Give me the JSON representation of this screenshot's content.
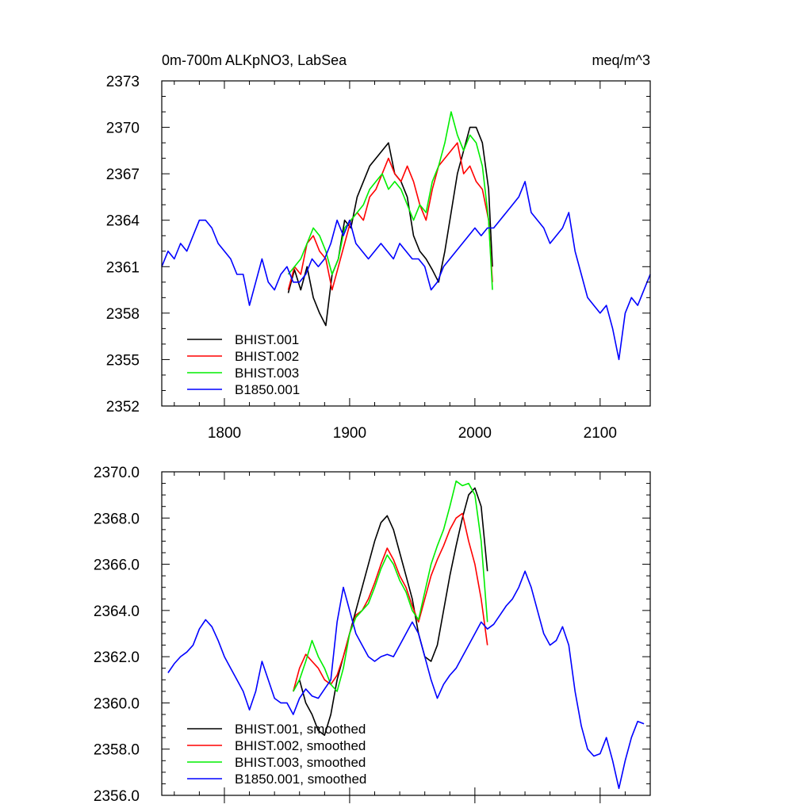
{
  "chart_data": [
    {
      "type": "line",
      "title_left": "0m-700m ALKpNO3, LabSea",
      "title_right": "meq/m^3",
      "xlim": [
        1750,
        2140
      ],
      "ylim": [
        2352,
        2373
      ],
      "xticks": [
        1800,
        1900,
        2000,
        2100
      ],
      "xtick_labels": [
        "1800",
        "1900",
        "2000",
        "2100"
      ],
      "yticks": [
        2352,
        2355,
        2358,
        2361,
        2364,
        2367,
        2370,
        2373
      ],
      "ytick_labels": [
        "2352",
        "2355",
        "2358",
        "2361",
        "2364",
        "2367",
        "2370",
        "2373"
      ],
      "legend_position": "bottom-left",
      "series": [
        {
          "name": "BHIST.001",
          "color": "#000000",
          "x": [
            1851,
            1856,
            1861,
            1866,
            1871,
            1876,
            1881,
            1886,
            1891,
            1896,
            1901,
            1906,
            1911,
            1916,
            1921,
            1926,
            1931,
            1936,
            1941,
            1946,
            1951,
            1956,
            1961,
            1966,
            1971,
            1976,
            1981,
            1986,
            1991,
            1996,
            2001,
            2006,
            2011,
            2014
          ],
          "y": [
            2359.3,
            2360.8,
            2359.5,
            2361.0,
            2359.0,
            2358.0,
            2357.2,
            2360.5,
            2361.5,
            2364.0,
            2363.5,
            2365.5,
            2366.5,
            2367.5,
            2368.0,
            2368.5,
            2369.0,
            2367.0,
            2366.5,
            2365.5,
            2363.0,
            2362.0,
            2361.5,
            2360.8,
            2360.0,
            2362.0,
            2364.5,
            2367.0,
            2368.5,
            2370.0,
            2370.0,
            2369.0,
            2366.0,
            2361.0
          ]
        },
        {
          "name": "BHIST.002",
          "color": "#ff0000",
          "x": [
            1851,
            1856,
            1861,
            1866,
            1871,
            1876,
            1881,
            1886,
            1891,
            1896,
            1901,
            1906,
            1911,
            1916,
            1921,
            1926,
            1931,
            1936,
            1941,
            1946,
            1951,
            1956,
            1961,
            1966,
            1971,
            1976,
            1981,
            1986,
            1991,
            1996,
            2001,
            2006,
            2011,
            2014
          ],
          "y": [
            2359.5,
            2361.0,
            2360.5,
            2362.5,
            2363.0,
            2362.0,
            2361.5,
            2359.5,
            2361.0,
            2362.5,
            2364.0,
            2364.5,
            2364.0,
            2365.5,
            2366.0,
            2367.0,
            2368.0,
            2367.0,
            2366.5,
            2367.5,
            2366.5,
            2365.0,
            2364.0,
            2366.0,
            2367.5,
            2368.0,
            2368.5,
            2369.0,
            2367.0,
            2367.5,
            2366.5,
            2366.0,
            2364.0,
            2360.0
          ]
        },
        {
          "name": "BHIST.003",
          "color": "#00ee00",
          "x": [
            1851,
            1856,
            1861,
            1866,
            1871,
            1876,
            1881,
            1886,
            1891,
            1896,
            1901,
            1906,
            1911,
            1916,
            1921,
            1926,
            1931,
            1936,
            1941,
            1946,
            1951,
            1956,
            1961,
            1966,
            1971,
            1976,
            1981,
            1986,
            1991,
            1996,
            2001,
            2006,
            2011,
            2014
          ],
          "y": [
            2360.5,
            2361.0,
            2361.5,
            2362.5,
            2363.5,
            2363.0,
            2362.0,
            2360.5,
            2361.5,
            2363.5,
            2364.0,
            2364.5,
            2365.0,
            2366.0,
            2366.5,
            2367.0,
            2366.0,
            2366.5,
            2366.0,
            2365.0,
            2364.0,
            2365.0,
            2364.5,
            2366.5,
            2367.5,
            2369.0,
            2371.0,
            2369.5,
            2368.5,
            2369.5,
            2369.0,
            2367.5,
            2364.0,
            2359.5
          ]
        },
        {
          "name": "B1850.001",
          "color": "#0000ff",
          "x": [
            1750,
            1755,
            1760,
            1765,
            1770,
            1775,
            1780,
            1785,
            1790,
            1795,
            1800,
            1805,
            1810,
            1815,
            1820,
            1825,
            1830,
            1835,
            1840,
            1845,
            1850,
            1855,
            1860,
            1865,
            1870,
            1875,
            1880,
            1885,
            1890,
            1895,
            1900,
            1905,
            1910,
            1915,
            1920,
            1925,
            1930,
            1935,
            1940,
            1945,
            1950,
            1955,
            1960,
            1965,
            1970,
            1975,
            1980,
            1985,
            1990,
            1995,
            2000,
            2005,
            2010,
            2015,
            2020,
            2025,
            2030,
            2035,
            2040,
            2045,
            2050,
            2055,
            2060,
            2065,
            2070,
            2075,
            2080,
            2085,
            2090,
            2095,
            2100,
            2105,
            2110,
            2115,
            2120,
            2125,
            2130,
            2135,
            2140
          ],
          "y": [
            2361.0,
            2362.0,
            2361.5,
            2362.5,
            2362.0,
            2363.0,
            2364.0,
            2364.0,
            2363.5,
            2362.5,
            2362.0,
            2361.5,
            2360.5,
            2360.5,
            2358.5,
            2360.0,
            2361.5,
            2360.0,
            2359.5,
            2360.5,
            2361.0,
            2360.0,
            2360.0,
            2360.5,
            2361.5,
            2361.0,
            2361.5,
            2362.5,
            2364.0,
            2363.0,
            2364.0,
            2362.5,
            2362.0,
            2361.5,
            2362.0,
            2362.5,
            2362.0,
            2361.5,
            2362.5,
            2362.0,
            2361.5,
            2361.5,
            2361.0,
            2359.5,
            2360.0,
            2361.0,
            2361.5,
            2362.0,
            2362.5,
            2363.0,
            2363.5,
            2363.0,
            2363.5,
            2363.5,
            2364.0,
            2364.5,
            2365.0,
            2365.5,
            2366.5,
            2364.5,
            2364.0,
            2363.5,
            2362.5,
            2363.0,
            2363.5,
            2364.5,
            2362.0,
            2360.5,
            2359.0,
            2358.5,
            2358.0,
            2358.5,
            2357.0,
            2355.0,
            2358.0,
            2359.0,
            2358.5,
            2359.5,
            2360.5
          ]
        }
      ]
    },
    {
      "type": "line",
      "xlim": [
        1750,
        2140
      ],
      "ylim": [
        2356.0,
        2370.0
      ],
      "xticks": [
        1800,
        1900,
        2000,
        2100
      ],
      "yticks": [
        2356.0,
        2358.0,
        2360.0,
        2362.0,
        2364.0,
        2366.0,
        2368.0,
        2370.0
      ],
      "ytick_labels": [
        "2356.0",
        "2358.0",
        "2360.0",
        "2362.0",
        "2364.0",
        "2366.0",
        "2368.0",
        "2370.0"
      ],
      "legend_position": "bottom-left",
      "series": [
        {
          "name": "BHIST.001, smoothed",
          "color": "#000000",
          "x": [
            1855,
            1860,
            1865,
            1870,
            1875,
            1880,
            1885,
            1890,
            1895,
            1900,
            1905,
            1910,
            1915,
            1920,
            1925,
            1930,
            1935,
            1940,
            1945,
            1950,
            1955,
            1960,
            1965,
            1970,
            1975,
            1980,
            1985,
            1990,
            1995,
            2000,
            2005,
            2010
          ],
          "y": [
            2360.5,
            2361.0,
            2360.0,
            2359.5,
            2358.8,
            2358.6,
            2359.5,
            2361.0,
            2362.0,
            2363.0,
            2364.0,
            2365.0,
            2366.0,
            2367.0,
            2367.8,
            2368.1,
            2367.5,
            2366.5,
            2365.5,
            2364.5,
            2363.0,
            2362.0,
            2361.8,
            2362.5,
            2364.0,
            2365.5,
            2366.8,
            2368.0,
            2369.0,
            2369.3,
            2368.5,
            2365.7
          ]
        },
        {
          "name": "BHIST.002, smoothed",
          "color": "#ff0000",
          "x": [
            1855,
            1860,
            1865,
            1870,
            1875,
            1880,
            1885,
            1890,
            1895,
            1900,
            1905,
            1910,
            1915,
            1920,
            1925,
            1930,
            1935,
            1940,
            1945,
            1950,
            1955,
            1960,
            1965,
            1970,
            1975,
            1980,
            1985,
            1990,
            1995,
            2000,
            2005,
            2010
          ],
          "y": [
            2360.5,
            2361.5,
            2362.1,
            2361.8,
            2361.5,
            2361.0,
            2360.8,
            2361.2,
            2362.0,
            2363.0,
            2363.8,
            2364.0,
            2364.5,
            2365.2,
            2366.0,
            2366.7,
            2366.2,
            2365.5,
            2365.0,
            2364.2,
            2363.5,
            2364.5,
            2365.5,
            2366.2,
            2366.8,
            2367.5,
            2368.0,
            2368.2,
            2367.0,
            2366.0,
            2364.5,
            2362.5
          ]
        },
        {
          "name": "BHIST.003, smoothed",
          "color": "#00ee00",
          "x": [
            1855,
            1860,
            1865,
            1870,
            1875,
            1880,
            1885,
            1890,
            1895,
            1900,
            1905,
            1910,
            1915,
            1920,
            1925,
            1930,
            1935,
            1940,
            1945,
            1950,
            1955,
            1960,
            1965,
            1970,
            1975,
            1980,
            1985,
            1990,
            1995,
            2000,
            2005,
            2010
          ],
          "y": [
            2360.5,
            2361.0,
            2361.8,
            2362.7,
            2362.0,
            2361.5,
            2360.8,
            2360.5,
            2361.5,
            2363.0,
            2363.7,
            2364.0,
            2364.3,
            2365.0,
            2365.8,
            2366.4,
            2366.0,
            2365.3,
            2364.8,
            2364.0,
            2363.6,
            2364.8,
            2366.0,
            2366.8,
            2367.5,
            2368.5,
            2369.6,
            2369.4,
            2369.5,
            2369.0,
            2367.0,
            2363.5
          ]
        },
        {
          "name": "B1850.001, smoothed",
          "color": "#0000ff",
          "x": [
            1755,
            1760,
            1765,
            1770,
            1775,
            1780,
            1785,
            1790,
            1795,
            1800,
            1805,
            1810,
            1815,
            1820,
            1825,
            1830,
            1835,
            1840,
            1845,
            1850,
            1855,
            1860,
            1865,
            1870,
            1875,
            1880,
            1885,
            1890,
            1895,
            1900,
            1905,
            1910,
            1915,
            1920,
            1925,
            1930,
            1935,
            1940,
            1945,
            1950,
            1955,
            1960,
            1965,
            1970,
            1975,
            1980,
            1985,
            1990,
            1995,
            2000,
            2005,
            2010,
            2015,
            2020,
            2025,
            2030,
            2035,
            2040,
            2045,
            2050,
            2055,
            2060,
            2065,
            2070,
            2075,
            2080,
            2085,
            2090,
            2095,
            2100,
            2105,
            2110,
            2115,
            2120,
            2125,
            2130,
            2135
          ],
          "y": [
            2361.3,
            2361.7,
            2362.0,
            2362.2,
            2362.5,
            2363.2,
            2363.6,
            2363.3,
            2362.7,
            2362.0,
            2361.5,
            2361.0,
            2360.5,
            2359.7,
            2360.5,
            2361.8,
            2361.0,
            2360.2,
            2360.0,
            2360.0,
            2359.5,
            2360.2,
            2360.6,
            2360.3,
            2360.2,
            2360.6,
            2361.0,
            2363.5,
            2365.0,
            2364.0,
            2363.0,
            2362.5,
            2362.0,
            2361.8,
            2362.0,
            2362.1,
            2362.0,
            2362.5,
            2363.0,
            2363.5,
            2363.0,
            2362.0,
            2361.0,
            2360.2,
            2360.8,
            2361.2,
            2361.5,
            2362.0,
            2362.5,
            2363.0,
            2363.5,
            2363.2,
            2363.4,
            2363.8,
            2364.2,
            2364.5,
            2365.0,
            2365.7,
            2365.0,
            2364.0,
            2363.0,
            2362.5,
            2362.7,
            2363.3,
            2362.5,
            2360.5,
            2359.0,
            2358.0,
            2357.7,
            2357.8,
            2358.5,
            2357.5,
            2356.3,
            2357.5,
            2358.5,
            2359.2,
            2359.1
          ]
        }
      ]
    }
  ]
}
